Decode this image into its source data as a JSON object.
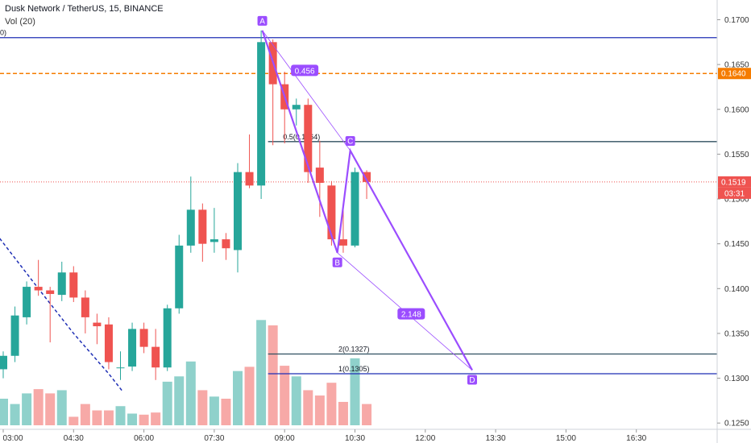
{
  "header": {
    "title": "Dusk Network / TetherUS, 15, BINANCE",
    "volume_label": "Vol (20)"
  },
  "chart_data": {
    "type": "candlestick",
    "symbol": "Dusk Network / TetherUS",
    "interval": "15",
    "exchange": "BINANCE",
    "y_axis": {
      "range": [
        0.1243,
        0.1722
      ],
      "ticks": [
        "0.1700",
        "0.1650",
        "0.1600",
        "0.1550",
        "0.1500",
        "0.1450",
        "0.1400",
        "0.1350",
        "0.1300",
        "0.1250"
      ]
    },
    "x_axis": {
      "ticks": [
        {
          "label": "03:00",
          "bar": 0
        },
        {
          "label": "04:30",
          "bar": 6
        },
        {
          "label": "06:00",
          "bar": 12
        },
        {
          "label": "07:30",
          "bar": 18
        },
        {
          "label": "09:00",
          "bar": 24
        },
        {
          "label": "10:30",
          "bar": 30
        },
        {
          "label": "12:00",
          "bar": 36
        },
        {
          "label": "13:30",
          "bar": 42
        },
        {
          "label": "15:00",
          "bar": 48
        },
        {
          "label": "16:30",
          "bar": 54
        }
      ]
    },
    "candles": [
      {
        "o": 0.131,
        "h": 0.133,
        "l": 0.13,
        "c": 0.1325,
        "v": 0.25
      },
      {
        "o": 0.1325,
        "h": 0.138,
        "l": 0.1318,
        "c": 0.137,
        "v": 0.2
      },
      {
        "o": 0.1368,
        "h": 0.1408,
        "l": 0.136,
        "c": 0.1402,
        "v": 0.3
      },
      {
        "o": 0.1402,
        "h": 0.1432,
        "l": 0.1392,
        "c": 0.1398,
        "v": 0.34
      },
      {
        "o": 0.1398,
        "h": 0.1402,
        "l": 0.134,
        "c": 0.1394,
        "v": 0.3
      },
      {
        "o": 0.1393,
        "h": 0.143,
        "l": 0.1386,
        "c": 0.1418,
        "v": 0.33
      },
      {
        "o": 0.1418,
        "h": 0.1425,
        "l": 0.1385,
        "c": 0.139,
        "v": 0.08
      },
      {
        "o": 0.139,
        "h": 0.1398,
        "l": 0.135,
        "c": 0.1368,
        "v": 0.2
      },
      {
        "o": 0.1362,
        "h": 0.1372,
        "l": 0.1338,
        "c": 0.1358,
        "v": 0.14
      },
      {
        "o": 0.136,
        "h": 0.1368,
        "l": 0.131,
        "c": 0.1318,
        "v": 0.14
      },
      {
        "o": 0.1312,
        "h": 0.133,
        "l": 0.1298,
        "c": 0.1312,
        "v": 0.18
      },
      {
        "o": 0.1313,
        "h": 0.1362,
        "l": 0.1308,
        "c": 0.1355,
        "v": 0.11
      },
      {
        "o": 0.1355,
        "h": 0.1362,
        "l": 0.1328,
        "c": 0.1335,
        "v": 0.1
      },
      {
        "o": 0.1335,
        "h": 0.1355,
        "l": 0.1298,
        "c": 0.1312,
        "v": 0.12
      },
      {
        "o": 0.1312,
        "h": 0.1382,
        "l": 0.1308,
        "c": 0.1378,
        "v": 0.41
      },
      {
        "o": 0.1378,
        "h": 0.146,
        "l": 0.1372,
        "c": 0.1448,
        "v": 0.46
      },
      {
        "o": 0.1448,
        "h": 0.1525,
        "l": 0.144,
        "c": 0.1488,
        "v": 0.6
      },
      {
        "o": 0.1488,
        "h": 0.1495,
        "l": 0.143,
        "c": 0.145,
        "v": 0.33
      },
      {
        "o": 0.1452,
        "h": 0.149,
        "l": 0.144,
        "c": 0.1455,
        "v": 0.27
      },
      {
        "o": 0.1455,
        "h": 0.1462,
        "l": 0.1432,
        "c": 0.1445,
        "v": 0.25
      },
      {
        "o": 0.1443,
        "h": 0.154,
        "l": 0.1418,
        "c": 0.153,
        "v": 0.51
      },
      {
        "o": 0.153,
        "h": 0.1572,
        "l": 0.1512,
        "c": 0.1515,
        "v": 0.55
      },
      {
        "o": 0.1515,
        "h": 0.1688,
        "l": 0.15,
        "c": 0.1675,
        "v": 0.99
      },
      {
        "o": 0.1675,
        "h": 0.1678,
        "l": 0.156,
        "c": 0.1628,
        "v": 0.94
      },
      {
        "o": 0.1628,
        "h": 0.1642,
        "l": 0.1562,
        "c": 0.16,
        "v": 0.56
      },
      {
        "o": 0.16,
        "h": 0.1612,
        "l": 0.1582,
        "c": 0.1605,
        "v": 0.46
      },
      {
        "o": 0.1605,
        "h": 0.1612,
        "l": 0.1518,
        "c": 0.153,
        "v": 0.33
      },
      {
        "o": 0.1535,
        "h": 0.1565,
        "l": 0.148,
        "c": 0.1518,
        "v": 0.28
      },
      {
        "o": 0.1515,
        "h": 0.152,
        "l": 0.1448,
        "c": 0.1455,
        "v": 0.4
      },
      {
        "o": 0.1455,
        "h": 0.1492,
        "l": 0.144,
        "c": 0.1448,
        "v": 0.22
      },
      {
        "o": 0.1448,
        "h": 0.1535,
        "l": 0.1446,
        "c": 0.153,
        "v": 0.63
      },
      {
        "o": 0.153,
        "h": 0.1532,
        "l": 0.15,
        "c": 0.1519,
        "v": 0.2
      }
    ],
    "horizontal_lines": [
      {
        "price": 0.168,
        "label": "0)",
        "color": "#1f2fb5",
        "style": "solid"
      },
      {
        "price": 0.164,
        "label": "",
        "color": "#f57c00",
        "style": "dashed"
      },
      {
        "price": 0.1564,
        "label": "0.5(0.1564)",
        "color": "#2f4f5f",
        "style": "solid"
      },
      {
        "price": 0.1327,
        "label": "2(0.1327)",
        "color": "#2f4f5f",
        "style": "solid"
      },
      {
        "price": 0.1305,
        "label": "1(0.1305)",
        "color": "#1f2fb5",
        "style": "solid"
      }
    ],
    "abcd_pattern": {
      "color": "#9b4dff",
      "points": [
        {
          "label": "A",
          "bar": 22.1,
          "price": 0.1688
        },
        {
          "label": "B",
          "bar": 28.5,
          "price": 0.144
        },
        {
          "label": "C",
          "bar": 29.6,
          "price": 0.1554
        },
        {
          "label": "D",
          "bar": 40.0,
          "price": 0.1309
        }
      ],
      "ratios": [
        "0.456",
        "2.148"
      ]
    },
    "price_tags": [
      {
        "price": 0.164,
        "text": "0.1640",
        "color": "#f57c00"
      },
      {
        "price": 0.1519,
        "text": "0.1519",
        "color": "#ef5350"
      }
    ],
    "countdown": "03:31",
    "last_price_line": 0.1519,
    "colors": {
      "up": "#26a69a",
      "down": "#ef5350",
      "up_vol": "#8fd1cb",
      "down_vol": "#f7a9a7"
    }
  }
}
